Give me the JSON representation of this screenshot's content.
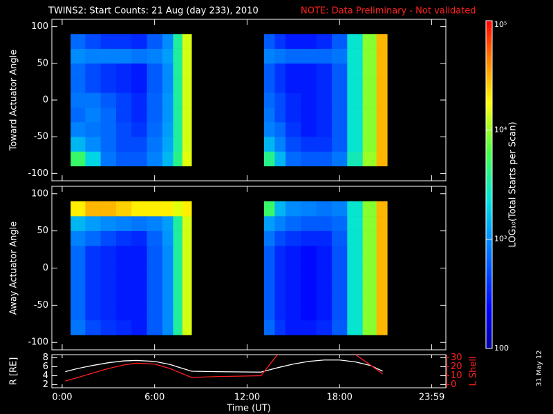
{
  "title": "TWINS2: Start Counts: 21 Aug (day 233), 2010",
  "note": "NOTE: Data Preliminary - Not validated",
  "date_stamp": "31 May 12",
  "colorbar": {
    "label": "LOG₁₀(Total Starts per Scan)",
    "clim": [
      100,
      100000
    ],
    "log": true,
    "ticks": [
      100,
      {
        "value": 1000,
        "label": "10³"
      },
      {
        "value": 10000,
        "label": "10⁴"
      },
      {
        "value": 100000,
        "label": "10⁵"
      }
    ]
  },
  "chart_data": [
    {
      "type": "heatmap",
      "ylabel": "Toward Actuator Angle",
      "xlim": [
        -0.67,
        24.9
      ],
      "ylim": [
        -110,
        110
      ],
      "xticks": [
        0,
        6,
        12,
        18,
        23.983
      ],
      "yticks": [
        100,
        50,
        0,
        -50,
        -100
      ],
      "x_edges": [
        0.55,
        1.5,
        2.5,
        3.5,
        4.5,
        5.5,
        6.5,
        7.2,
        7.8,
        8.4,
        13.1,
        13.8,
        14.5,
        15.5,
        16.5,
        17.5,
        18.5,
        19.5,
        20.4,
        21.1
      ],
      "y_edges": [
        -90,
        -70,
        -50,
        -30,
        -10,
        10,
        30,
        50,
        70,
        90
      ],
      "z": [
        [
          5000,
          2000,
          800,
          600,
          600,
          900,
          1500,
          4000,
          15000,
          null,
          4000,
          1500,
          700,
          600,
          600,
          800,
          3000,
          10000,
          30000
        ],
        [
          1500,
          1000,
          700,
          500,
          500,
          800,
          1300,
          3500,
          14000,
          null,
          1500,
          900,
          500,
          400,
          400,
          600,
          2500,
          9000,
          30000
        ],
        [
          900,
          800,
          700,
          500,
          400,
          700,
          1200,
          3500,
          14000,
          null,
          900,
          700,
          400,
          300,
          350,
          600,
          2500,
          9000,
          30000
        ],
        [
          700,
          900,
          700,
          450,
          350,
          650,
          1100,
          3500,
          14000,
          null,
          800,
          500,
          350,
          300,
          350,
          600,
          2500,
          9000,
          30000
        ],
        [
          800,
          800,
          600,
          450,
          350,
          650,
          1100,
          3500,
          14000,
          null,
          700,
          500,
          350,
          300,
          350,
          600,
          2500,
          9000,
          30000
        ],
        [
          700,
          500,
          400,
          350,
          300,
          600,
          1000,
          3500,
          14000,
          null,
          600,
          400,
          300,
          300,
          350,
          600,
          2500,
          9000,
          30000
        ],
        [
          700,
          500,
          400,
          350,
          300,
          600,
          1000,
          3500,
          14000,
          null,
          600,
          400,
          300,
          300,
          350,
          600,
          2500,
          9000,
          30000
        ],
        [
          1000,
          900,
          900,
          900,
          800,
          900,
          1200,
          3500,
          14000,
          null,
          900,
          800,
          700,
          700,
          700,
          800,
          2500,
          9000,
          30000
        ],
        [
          700,
          500,
          400,
          400,
          350,
          600,
          1000,
          3500,
          14000,
          null,
          600,
          400,
          300,
          300,
          350,
          600,
          2500,
          9000,
          30000
        ]
      ]
    },
    {
      "type": "heatmap",
      "ylabel": "Away Actuator Angle",
      "xlim": [
        -0.67,
        24.9
      ],
      "ylim": [
        -110,
        110
      ],
      "xticks": [
        0,
        6,
        12,
        18,
        23.983
      ],
      "yticks": [
        100,
        50,
        0,
        -50,
        -100
      ],
      "x_edges": [
        0.55,
        1.5,
        2.5,
        3.5,
        4.5,
        5.5,
        6.5,
        7.2,
        7.8,
        8.4,
        13.1,
        13.8,
        14.5,
        15.5,
        16.5,
        17.5,
        18.5,
        19.5,
        20.4,
        21.1
      ],
      "y_edges": [
        -90,
        -70,
        -50,
        -30,
        -10,
        10,
        30,
        50,
        70,
        90
      ],
      "z": [
        [
          800,
          500,
          400,
          350,
          300,
          600,
          1000,
          3500,
          14000,
          null,
          700,
          400,
          300,
          300,
          350,
          600,
          2500,
          9000,
          30000
        ],
        [
          700,
          400,
          350,
          300,
          300,
          600,
          1000,
          3500,
          14000,
          null,
          600,
          350,
          300,
          250,
          300,
          550,
          2500,
          9000,
          30000
        ],
        [
          700,
          400,
          350,
          300,
          300,
          600,
          1000,
          3500,
          14000,
          null,
          600,
          350,
          300,
          250,
          300,
          550,
          2500,
          9000,
          30000
        ],
        [
          700,
          400,
          350,
          300,
          300,
          600,
          1000,
          3500,
          14000,
          null,
          600,
          350,
          300,
          250,
          300,
          550,
          2500,
          9000,
          30000
        ],
        [
          700,
          400,
          350,
          300,
          300,
          600,
          1000,
          3500,
          14000,
          null,
          600,
          350,
          300,
          250,
          300,
          550,
          2500,
          9000,
          30000
        ],
        [
          700,
          400,
          350,
          300,
          300,
          600,
          1000,
          3500,
          14000,
          null,
          600,
          350,
          300,
          250,
          300,
          550,
          2500,
          9000,
          30000
        ],
        [
          900,
          700,
          500,
          400,
          350,
          650,
          1100,
          3500,
          14000,
          null,
          800,
          500,
          400,
          350,
          350,
          600,
          2500,
          9000,
          30000
        ],
        [
          1500,
          1200,
          1000,
          900,
          800,
          900,
          1200,
          3500,
          14000,
          null,
          1200,
          900,
          700,
          600,
          600,
          700,
          2500,
          9000,
          30000
        ],
        [
          20000,
          30000,
          30000,
          25000,
          20000,
          20000,
          20000,
          15000,
          20000,
          null,
          5000,
          1500,
          1000,
          900,
          800,
          900,
          2500,
          9000,
          30000
        ]
      ]
    },
    {
      "type": "line",
      "ylabel": "R [RE]",
      "y2label": "L Shell",
      "xlabel": "Time (UT)",
      "xlim": [
        -0.67,
        24.9
      ],
      "xticks": [
        {
          "value": 0,
          "label": "0:00"
        },
        {
          "value": 6,
          "label": "6:00"
        },
        {
          "value": 12,
          "label": "12:00"
        },
        {
          "value": 18,
          "label": "18:00"
        },
        {
          "value": 23.983,
          "label": "23:59"
        }
      ],
      "ylim": [
        1.3,
        8.7
      ],
      "yticks": [
        2,
        4,
        6,
        8
      ],
      "y2lim": [
        -3.5,
        33.5
      ],
      "y2ticks": [
        0,
        10,
        20,
        30
      ],
      "x": [
        0.2,
        1,
        2,
        3,
        4,
        4.8,
        6,
        7,
        8.4,
        10,
        12.9,
        14,
        15,
        16,
        17,
        18,
        19,
        20,
        20.8
      ],
      "series": [
        {
          "color": "#ffffff",
          "values": [
            4.9,
            5.6,
            6.3,
            6.9,
            7.3,
            7.4,
            7.2,
            6.5,
            5.0,
            4.9,
            4.8,
            5.8,
            6.6,
            7.2,
            7.5,
            7.5,
            7.1,
            6.3,
            5.0
          ]
        },
        {
          "color": "#ff2020",
          "axis": "y2",
          "values": [
            4,
            8,
            13,
            18,
            22,
            24,
            23,
            18,
            8,
            9,
            10,
            34,
            null,
            null,
            null,
            null,
            34,
            22,
            12
          ]
        }
      ]
    }
  ]
}
